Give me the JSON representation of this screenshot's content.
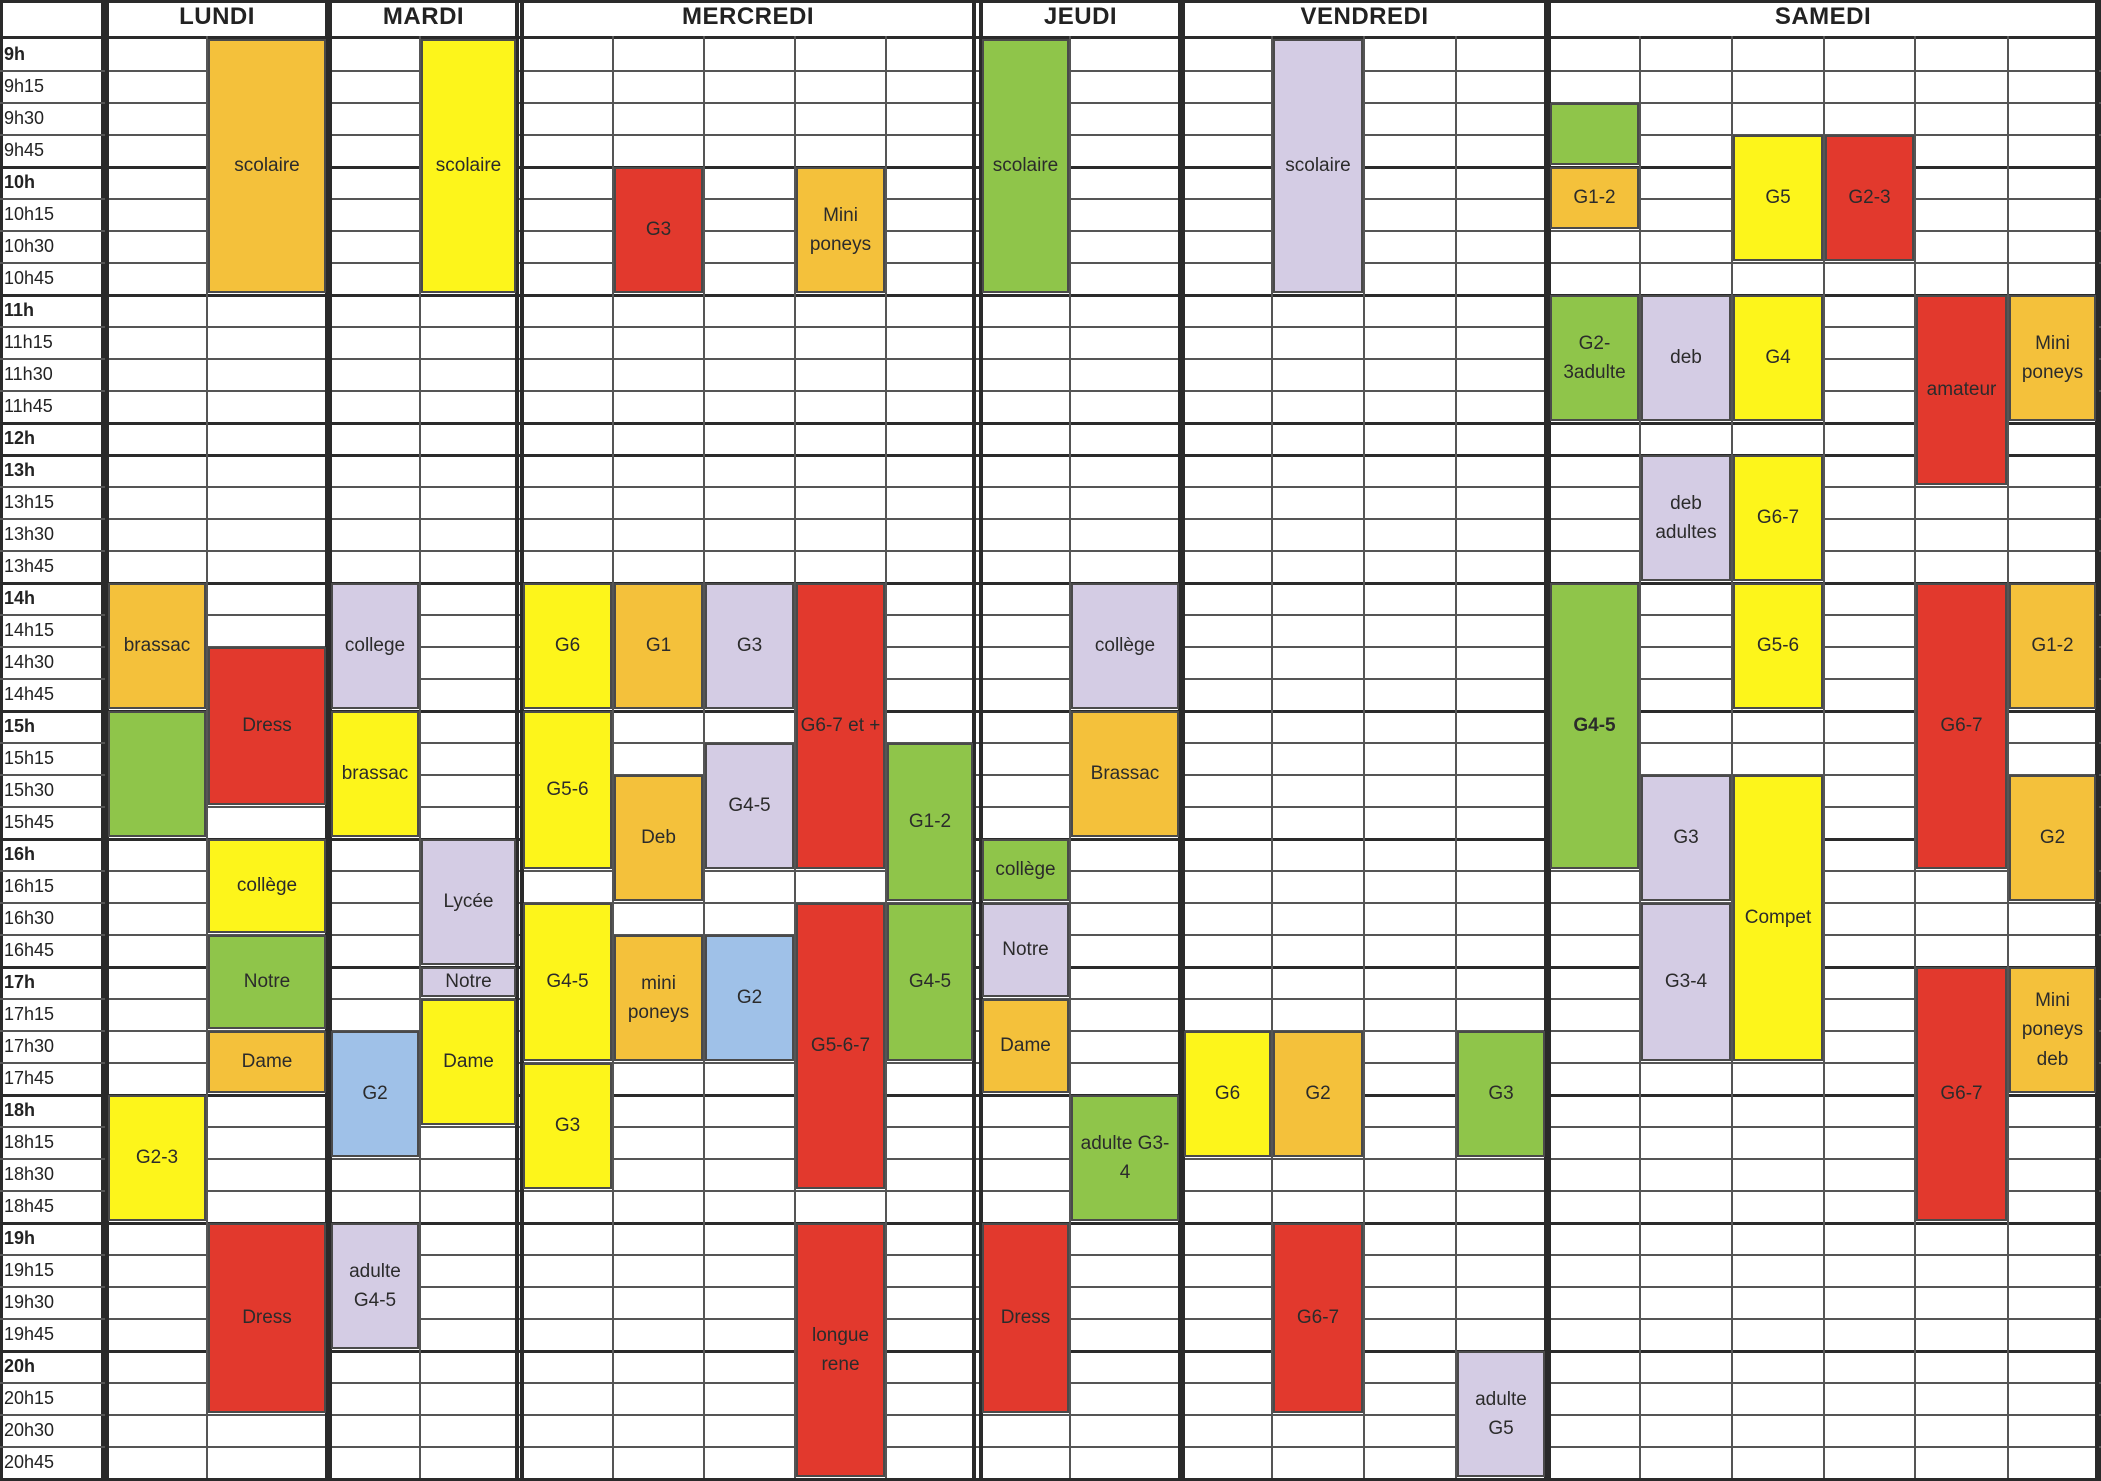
{
  "days": [
    {
      "name": "LUNDI",
      "cols": [
        107,
        207,
        327
      ]
    },
    {
      "name": "MARDI",
      "cols": [
        330,
        420,
        517
      ]
    },
    {
      "name": "MERCREDI",
      "cols": [
        522,
        613,
        704,
        795,
        886,
        974
      ]
    },
    {
      "name": "JEUDI",
      "cols": [
        981,
        1070,
        1180
      ]
    },
    {
      "name": "VENDREDI",
      "cols": [
        1183,
        1272,
        1364,
        1456,
        1546
      ]
    },
    {
      "name": "SAMEDI",
      "cols": [
        1549,
        1640,
        1732,
        1824,
        1915,
        2008,
        2097
      ]
    }
  ],
  "times": [
    "9h",
    "9h15",
    "9h30",
    "9h45",
    "10h",
    "10h15",
    "10h30",
    "10h45",
    "11h",
    "11h15",
    "11h30",
    "11h45",
    "12h",
    "13h",
    "13h15",
    "13h30",
    "13h45",
    "14h",
    "14h15",
    "14h30",
    "14h45",
    "15h",
    "15h15",
    "15h30",
    "15h45",
    "16h",
    "16h15",
    "16h30",
    "16h45",
    "17h",
    "17h15",
    "17h30",
    "17h45",
    "18h",
    "18h15",
    "18h30",
    "18h45",
    "19h",
    "19h15",
    "19h30",
    "19h45",
    "20h",
    "20h15",
    "20h30",
    "20h45"
  ],
  "colors": {
    "orange": "#f4c13b",
    "yellow": "#fdf51b",
    "red": "#e2392d",
    "green": "#8fc54a",
    "lilac": "#d4cce4",
    "blue": "#9fc1e8"
  },
  "events": [
    {
      "label": "scolaire",
      "col": 207,
      "col_end": 327,
      "row": 0,
      "rows": 8,
      "color": "orange"
    },
    {
      "label": "brassac",
      "col": 107,
      "col_end": 207,
      "row": 17,
      "rows": 4,
      "color": "orange"
    },
    {
      "label": "",
      "col": 107,
      "col_end": 207,
      "row": 21,
      "rows": 4,
      "color": "green"
    },
    {
      "label": "Dress",
      "col": 207,
      "col_end": 327,
      "row": 19,
      "rows": 5,
      "color": "red"
    },
    {
      "label": "collège",
      "col": 207,
      "col_end": 327,
      "row": 25,
      "rows": 3,
      "color": "yellow"
    },
    {
      "label": "Notre",
      "col": 207,
      "col_end": 327,
      "row": 28,
      "rows": 3,
      "color": "green"
    },
    {
      "label": "Dame",
      "col": 207,
      "col_end": 327,
      "row": 31,
      "rows": 2,
      "color": "orange"
    },
    {
      "label": "G2-3",
      "col": 107,
      "col_end": 207,
      "row": 33,
      "rows": 4,
      "color": "yellow"
    },
    {
      "label": "Dress",
      "col": 207,
      "col_end": 327,
      "row": 37,
      "rows": 6,
      "color": "red"
    },
    {
      "label": "scolaire",
      "col": 420,
      "col_end": 517,
      "row": 0,
      "rows": 8,
      "color": "yellow"
    },
    {
      "label": "college",
      "col": 330,
      "col_end": 420,
      "row": 17,
      "rows": 4,
      "color": "lilac"
    },
    {
      "label": "brassac",
      "col": 330,
      "col_end": 420,
      "row": 21,
      "rows": 4,
      "color": "yellow"
    },
    {
      "label": "Lycée",
      "col": 420,
      "col_end": 517,
      "row": 25,
      "rows": 4,
      "color": "lilac"
    },
    {
      "label": "Notre",
      "col": 420,
      "col_end": 517,
      "row": 29,
      "rows": 1,
      "color": "lilac"
    },
    {
      "label": "Dame",
      "col": 420,
      "col_end": 517,
      "row": 30,
      "rows": 4,
      "color": "yellow"
    },
    {
      "label": "G2",
      "col": 330,
      "col_end": 420,
      "row": 31,
      "rows": 4,
      "color": "blue"
    },
    {
      "label": "adulte\nG4-5",
      "col": 330,
      "col_end": 420,
      "row": 37,
      "rows": 4,
      "color": "lilac"
    },
    {
      "label": "G3",
      "col": 613,
      "col_end": 704,
      "row": 4,
      "rows": 4,
      "color": "red"
    },
    {
      "label": "Mini\nponeys",
      "col": 795,
      "col_end": 886,
      "row": 4,
      "rows": 4,
      "color": "orange"
    },
    {
      "label": "G6",
      "col": 522,
      "col_end": 613,
      "row": 17,
      "rows": 4,
      "color": "yellow"
    },
    {
      "label": "G1",
      "col": 613,
      "col_end": 704,
      "row": 17,
      "rows": 4,
      "color": "orange"
    },
    {
      "label": "G3",
      "col": 704,
      "col_end": 795,
      "row": 17,
      "rows": 4,
      "color": "lilac"
    },
    {
      "label": "G6-7 et +",
      "col": 795,
      "col_end": 886,
      "row": 17,
      "rows": 9,
      "color": "red"
    },
    {
      "label": "G5-6",
      "col": 522,
      "col_end": 613,
      "row": 21,
      "rows": 5,
      "color": "yellow"
    },
    {
      "label": "Deb",
      "col": 613,
      "col_end": 704,
      "row": 23,
      "rows": 4,
      "color": "orange"
    },
    {
      "label": "G4-5",
      "col": 704,
      "col_end": 795,
      "row": 22,
      "rows": 4,
      "color": "lilac"
    },
    {
      "label": "G1-2",
      "col": 886,
      "col_end": 974,
      "row": 22,
      "rows": 5,
      "color": "green"
    },
    {
      "label": "G4-5",
      "col": 522,
      "col_end": 613,
      "row": 27,
      "rows": 5,
      "color": "yellow"
    },
    {
      "label": "mini\nponeys",
      "col": 613,
      "col_end": 704,
      "row": 28,
      "rows": 4,
      "color": "orange"
    },
    {
      "label": "G2",
      "col": 704,
      "col_end": 795,
      "row": 28,
      "rows": 4,
      "color": "blue"
    },
    {
      "label": "G5-6-7",
      "col": 795,
      "col_end": 886,
      "row": 27,
      "rows": 9,
      "color": "red"
    },
    {
      "label": "G4-5",
      "col": 886,
      "col_end": 974,
      "row": 27,
      "rows": 5,
      "color": "green"
    },
    {
      "label": "G3",
      "col": 522,
      "col_end": 613,
      "row": 32,
      "rows": 4,
      "color": "yellow"
    },
    {
      "label": "longue\nrene",
      "col": 795,
      "col_end": 886,
      "row": 37,
      "rows": 8,
      "color": "red"
    },
    {
      "label": "scolaire",
      "col": 981,
      "col_end": 1070,
      "row": 0,
      "rows": 8,
      "color": "green"
    },
    {
      "label": "collège",
      "col": 1070,
      "col_end": 1180,
      "row": 17,
      "rows": 4,
      "color": "lilac"
    },
    {
      "label": "Brassac",
      "col": 1070,
      "col_end": 1180,
      "row": 21,
      "rows": 4,
      "color": "orange"
    },
    {
      "label": "collège",
      "col": 981,
      "col_end": 1070,
      "row": 25,
      "rows": 2,
      "color": "green"
    },
    {
      "label": "Notre",
      "col": 981,
      "col_end": 1070,
      "row": 27,
      "rows": 3,
      "color": "lilac"
    },
    {
      "label": "Dame",
      "col": 981,
      "col_end": 1070,
      "row": 30,
      "rows": 3,
      "color": "orange"
    },
    {
      "label": "adulte G3-\n4",
      "col": 1070,
      "col_end": 1180,
      "row": 33,
      "rows": 4,
      "color": "green"
    },
    {
      "label": "Dress",
      "col": 981,
      "col_end": 1070,
      "row": 37,
      "rows": 6,
      "color": "red"
    },
    {
      "label": "scolaire",
      "col": 1272,
      "col_end": 1364,
      "row": 0,
      "rows": 8,
      "color": "lilac"
    },
    {
      "label": "G6",
      "col": 1183,
      "col_end": 1272,
      "row": 31,
      "rows": 4,
      "color": "yellow"
    },
    {
      "label": "G2",
      "col": 1272,
      "col_end": 1364,
      "row": 31,
      "rows": 4,
      "color": "orange"
    },
    {
      "label": "G3",
      "col": 1456,
      "col_end": 1546,
      "row": 31,
      "rows": 4,
      "color": "green"
    },
    {
      "label": "G6-7",
      "col": 1272,
      "col_end": 1364,
      "row": 37,
      "rows": 6,
      "color": "red"
    },
    {
      "label": "adulte\nG5",
      "col": 1456,
      "col_end": 1546,
      "row": 41,
      "rows": 4,
      "color": "lilac"
    },
    {
      "label": "",
      "col": 1549,
      "col_end": 1640,
      "row": 2,
      "rows": 2,
      "color": "green"
    },
    {
      "label": "G1-2",
      "col": 1549,
      "col_end": 1640,
      "row": 4,
      "rows": 2,
      "color": "orange"
    },
    {
      "label": "G5",
      "col": 1732,
      "col_end": 1824,
      "row": 3,
      "rows": 4,
      "color": "yellow"
    },
    {
      "label": "G2-3",
      "col": 1824,
      "col_end": 1915,
      "row": 3,
      "rows": 4,
      "color": "red"
    },
    {
      "label": "G2-\n3adulte",
      "col": 1549,
      "col_end": 1640,
      "row": 8,
      "rows": 4,
      "color": "green"
    },
    {
      "label": "deb",
      "col": 1640,
      "col_end": 1732,
      "row": 8,
      "rows": 4,
      "color": "lilac"
    },
    {
      "label": "G4",
      "col": 1732,
      "col_end": 1824,
      "row": 8,
      "rows": 4,
      "color": "yellow"
    },
    {
      "label": "amateur",
      "col": 1915,
      "col_end": 2008,
      "row": 8,
      "rows": 6,
      "color": "red"
    },
    {
      "label": "Mini\nponeys",
      "col": 2008,
      "col_end": 2097,
      "row": 8,
      "rows": 4,
      "color": "orange"
    },
    {
      "label": "deb\nadultes",
      "col": 1640,
      "col_end": 1732,
      "row": 13,
      "rows": 4,
      "color": "lilac"
    },
    {
      "label": "G6-7",
      "col": 1732,
      "col_end": 1824,
      "row": 13,
      "rows": 4,
      "color": "yellow"
    },
    {
      "label": "G4-5",
      "col": 1549,
      "col_end": 1640,
      "row": 17,
      "rows": 9,
      "color": "green",
      "bold": true
    },
    {
      "label": "G5-6",
      "col": 1732,
      "col_end": 1824,
      "row": 17,
      "rows": 4,
      "color": "yellow"
    },
    {
      "label": "G6-7",
      "col": 1915,
      "col_end": 2008,
      "row": 17,
      "rows": 9,
      "color": "red"
    },
    {
      "label": "G1-2",
      "col": 2008,
      "col_end": 2097,
      "row": 17,
      "rows": 4,
      "color": "orange"
    },
    {
      "label": "G3",
      "col": 1640,
      "col_end": 1732,
      "row": 23,
      "rows": 4,
      "color": "lilac"
    },
    {
      "label": "Compet",
      "col": 1732,
      "col_end": 1824,
      "row": 23,
      "rows": 9,
      "color": "yellow"
    },
    {
      "label": "G2",
      "col": 2008,
      "col_end": 2097,
      "row": 23,
      "rows": 4,
      "color": "orange"
    },
    {
      "label": "G3-4",
      "col": 1640,
      "col_end": 1732,
      "row": 27,
      "rows": 5,
      "color": "lilac"
    },
    {
      "label": "G6-7",
      "col": 1915,
      "col_end": 2008,
      "row": 29,
      "rows": 8,
      "color": "red"
    },
    {
      "label": "Mini\nponeys\ndeb",
      "col": 2008,
      "col_end": 2097,
      "row": 29,
      "rows": 4,
      "color": "orange"
    }
  ]
}
